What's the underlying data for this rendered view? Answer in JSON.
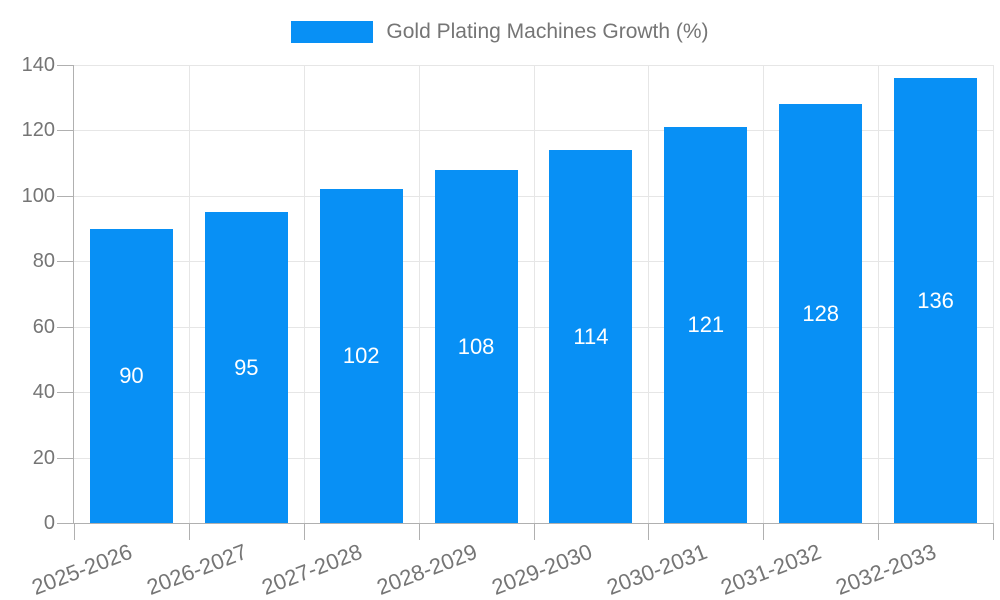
{
  "chart_data": {
    "type": "bar",
    "title": "Gold Plating Machines Growth (%)",
    "categories": [
      "2025-2026",
      "2026-2027",
      "2027-2028",
      "2028-2029",
      "2029-2030",
      "2030-2031",
      "2031-2032",
      "2032-2033"
    ],
    "values": [
      90,
      95,
      102,
      108,
      114,
      121,
      128,
      136
    ],
    "xlabel": "",
    "ylabel": "",
    "ylim": [
      0,
      140
    ],
    "ytick_step": 20,
    "yticks": [
      0,
      20,
      40,
      60,
      80,
      100,
      120,
      140
    ],
    "grid": true,
    "legend_position": "top-center",
    "value_labels": "inside-center",
    "x_label_rotation_deg": -21,
    "colors": {
      "bar": "#0890F5",
      "value_label": "#FFFFFF",
      "axis_text": "#757575",
      "grid_line": "#E6E6E6",
      "axis_line": "#B0B0B0",
      "background": "#FFFFFF"
    }
  }
}
